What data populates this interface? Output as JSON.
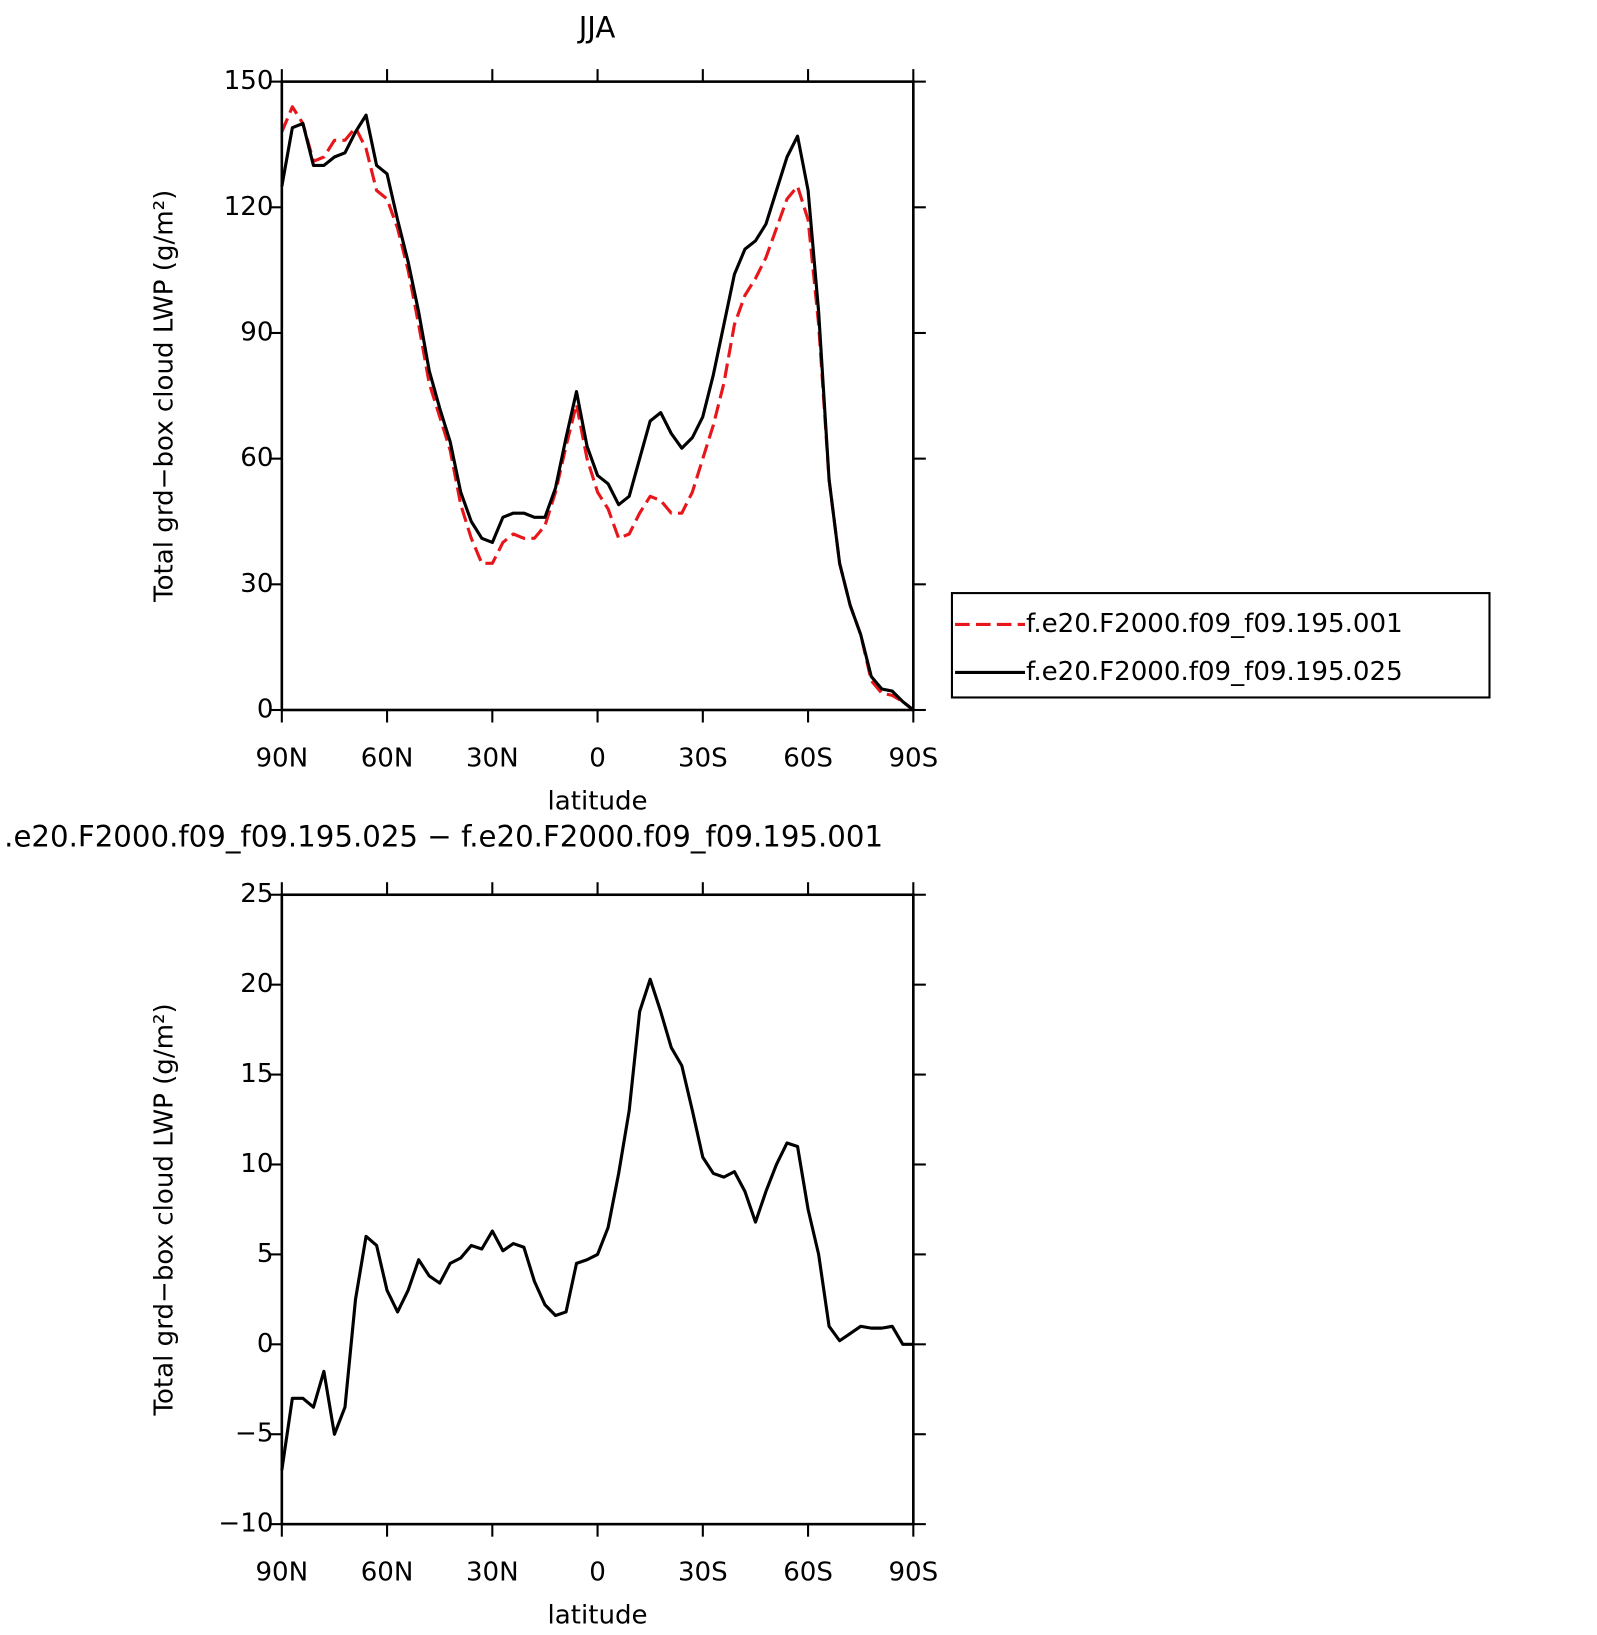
{
  "chart_data": [
    {
      "type": "line",
      "title": "JJA",
      "xlabel": "latitude",
      "ylabel": "Total grd−box cloud LWP (g/m²)",
      "x": [
        90,
        87,
        84,
        81,
        78,
        75,
        72,
        69,
        66,
        63,
        60,
        57,
        54,
        51,
        48,
        45,
        42,
        39,
        36,
        33,
        30,
        27,
        24,
        21,
        18,
        15,
        12,
        9,
        6,
        3,
        0,
        -3,
        -6,
        -9,
        -12,
        -15,
        -18,
        -21,
        -24,
        -27,
        -30,
        -33,
        -36,
        -39,
        -42,
        -45,
        -48,
        -51,
        -54,
        -57,
        -60,
        -63,
        -66,
        -69,
        -72,
        -75,
        -78,
        -81,
        -84,
        -87,
        -90
      ],
      "xlim": [
        90,
        -90
      ],
      "xticks": [
        {
          "value": 90,
          "label": "90N"
        },
        {
          "value": 60,
          "label": "60N"
        },
        {
          "value": 30,
          "label": "30N"
        },
        0,
        {
          "value": -30,
          "label": "30S"
        },
        {
          "value": -60,
          "label": "60S"
        },
        {
          "value": -90,
          "label": "90S"
        }
      ],
      "ylim": [
        0,
        150
      ],
      "yticks": [
        0,
        30,
        60,
        90,
        120,
        150
      ],
      "legend": "right",
      "series": [
        {
          "name": "f.e20.F2000.f09_f09.195.001",
          "color": "#e8161b",
          "dash": true,
          "values": [
            138,
            144,
            140,
            131,
            132,
            136,
            136,
            139,
            134,
            124,
            122,
            115,
            105,
            92,
            78,
            70,
            62,
            49,
            41,
            35,
            35,
            40,
            42,
            41,
            41,
            44,
            52,
            63,
            73,
            60,
            52,
            48,
            41,
            42,
            47,
            51,
            50,
            47,
            47,
            52,
            60,
            68,
            78,
            92,
            99,
            103,
            108,
            115,
            122,
            125,
            117,
            92,
            55,
            35,
            25,
            18,
            7,
            4,
            3.5,
            2,
            0
          ]
        },
        {
          "name": "f.e20.F2000.f09_f09.195.025",
          "color": "#000000",
          "dash": false,
          "values": [
            125,
            139,
            140,
            130,
            130,
            132,
            133,
            138,
            142,
            130,
            128,
            117,
            107,
            95,
            81,
            72,
            64,
            52,
            45,
            41,
            40,
            46,
            47,
            47,
            46,
            46,
            53,
            65,
            76,
            63,
            56,
            54,
            49,
            51,
            60,
            69,
            71,
            66,
            62.5,
            65,
            70,
            80,
            92,
            104,
            110,
            112,
            116,
            124,
            132,
            137,
            124,
            95,
            55,
            35,
            25,
            18,
            8,
            5,
            4.5,
            2,
            0
          ]
        }
      ]
    },
    {
      "type": "line",
      "title": ".e20.F2000.f09_f09.195.025 − f.e20.F2000.f09_f09.195.001",
      "xlabel": "latitude",
      "ylabel": "Total grd−box cloud LWP (g/m²)",
      "x": [
        90,
        87,
        84,
        81,
        78,
        75,
        72,
        69,
        66,
        63,
        60,
        57,
        54,
        51,
        48,
        45,
        42,
        39,
        36,
        33,
        30,
        27,
        24,
        21,
        18,
        15,
        12,
        9,
        6,
        3,
        0,
        -3,
        -6,
        -9,
        -12,
        -15,
        -18,
        -21,
        -24,
        -27,
        -30,
        -33,
        -36,
        -39,
        -42,
        -45,
        -48,
        -51,
        -54,
        -57,
        -60,
        -63,
        -66,
        -69,
        -72,
        -75,
        -78,
        -81,
        -84,
        -87,
        -90
      ],
      "xlim": [
        90,
        -90
      ],
      "xticks": [
        {
          "value": 90,
          "label": "90N"
        },
        {
          "value": 60,
          "label": "60N"
        },
        {
          "value": 30,
          "label": "30N"
        },
        0,
        {
          "value": -30,
          "label": "30S"
        },
        {
          "value": -60,
          "label": "60S"
        },
        {
          "value": -90,
          "label": "90S"
        }
      ],
      "ylim": [
        -10,
        25
      ],
      "yticks": [
        {
          "value": -10,
          "label": "−10"
        },
        {
          "value": -5,
          "label": "−5"
        },
        0,
        5,
        10,
        15,
        20,
        25
      ],
      "series": [
        {
          "color": "#000000",
          "dash": false,
          "values": [
            -7,
            -3,
            -3,
            -3.5,
            -1.5,
            -5,
            -3.5,
            2.5,
            6,
            5.5,
            3,
            1.8,
            3,
            4.7,
            3.8,
            3.4,
            4.5,
            4.8,
            5.5,
            5.3,
            6.3,
            5.2,
            5.6,
            5.4,
            3.5,
            2.2,
            1.6,
            1.8,
            4.5,
            4.7,
            5,
            6.5,
            9.5,
            13,
            18.5,
            20.3,
            18.5,
            16.5,
            15.5,
            13,
            10.4,
            9.5,
            9.3,
            9.6,
            8.5,
            6.8,
            8.5,
            10,
            11.2,
            11,
            7.5,
            5,
            1,
            0.2,
            0.6,
            1,
            0.9,
            0.9,
            1,
            0,
            0
          ]
        }
      ]
    }
  ]
}
